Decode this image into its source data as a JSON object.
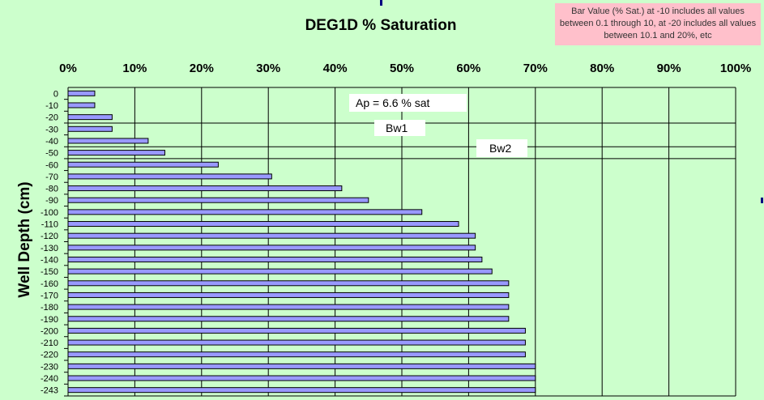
{
  "chart_data": {
    "type": "bar",
    "orientation": "horizontal",
    "title": "DEG1D % Saturation",
    "ylabel": "Well Depth (cm)",
    "xlim": [
      0,
      100
    ],
    "xticks": [
      "0%",
      "10%",
      "20%",
      "30%",
      "40%",
      "50%",
      "60%",
      "70%",
      "80%",
      "90%",
      "100%"
    ],
    "categories": [
      "0",
      "-10",
      "-20",
      "-30",
      "-40",
      "-50",
      "-60",
      "-70",
      "-80",
      "-90",
      "-100",
      "-110",
      "-120",
      "-130",
      "-140",
      "-150",
      "-160",
      "-170",
      "-180",
      "-190",
      "-200",
      "-210",
      "-220",
      "-230",
      "-240",
      "-243"
    ],
    "values": [
      4,
      4,
      6.6,
      6.6,
      12,
      14.5,
      22.5,
      30.5,
      41,
      45,
      53,
      58.5,
      61,
      61,
      62,
      63.5,
      66,
      66,
      66,
      66,
      68.5,
      68.5,
      68.5,
      70,
      70,
      70
    ],
    "grid": true,
    "bar_color": "#9999ff",
    "horizons": [
      {
        "label": "Ap = 6.6 % sat",
        "boundary_after": "-20"
      },
      {
        "label": "Bw1",
        "boundary_after": "-40"
      },
      {
        "label": "Bw2",
        "boundary_after": "-50"
      }
    ],
    "annotation": "Bar Value (% Sat.) at -10 includes all values between 0.1 through 10, at -20 includes all values between 10.1 and 20%, etc"
  }
}
